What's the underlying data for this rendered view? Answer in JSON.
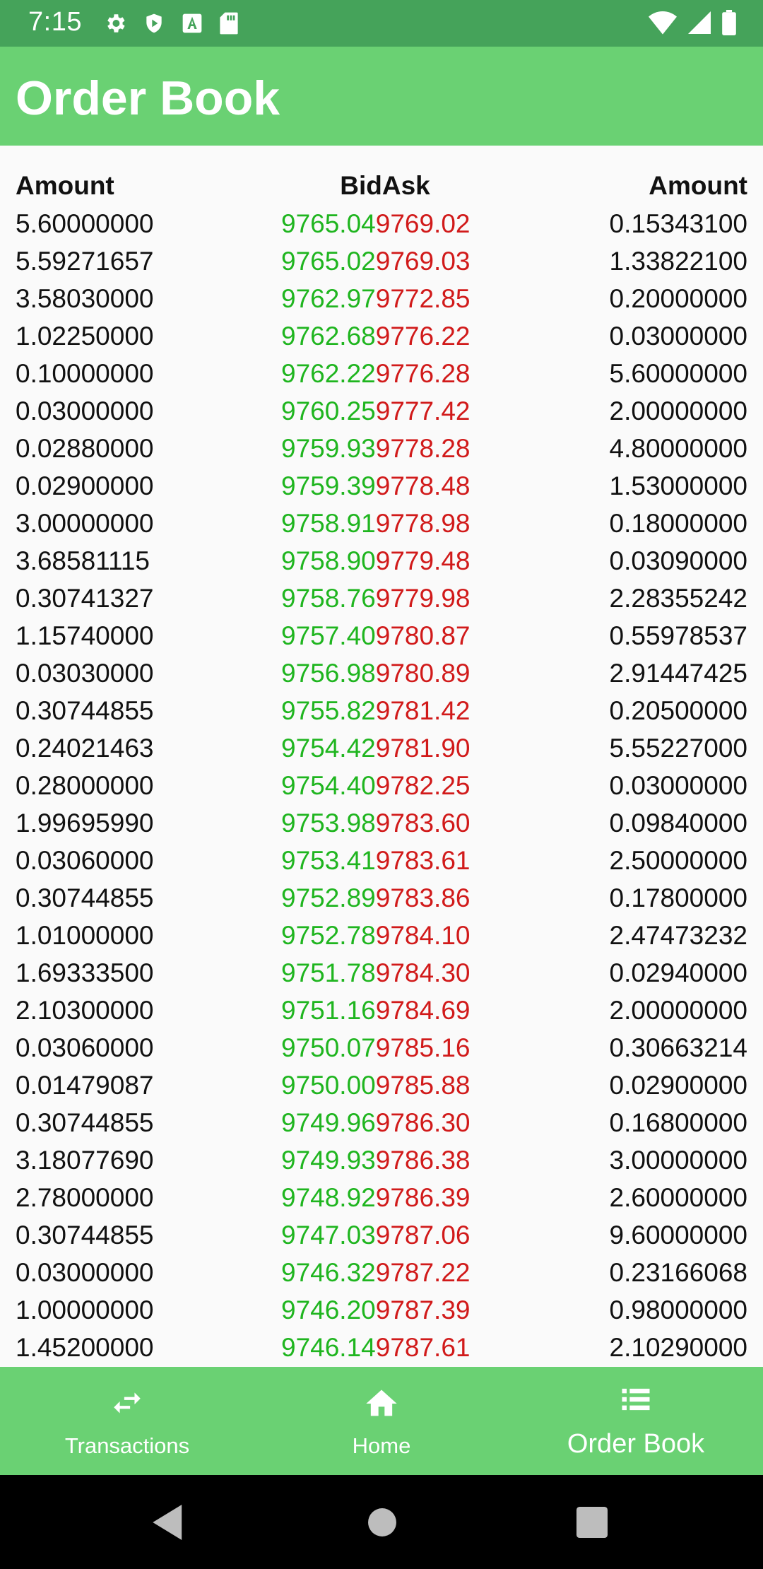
{
  "status": {
    "time": "7:15",
    "left_icons": [
      "gear-icon",
      "shield-icon",
      "font-a-icon",
      "sd-card-icon"
    ],
    "right_icons": [
      "wifi-icon",
      "signal-icon",
      "battery-icon"
    ]
  },
  "app_bar": {
    "title": "Order Book"
  },
  "table": {
    "headers": {
      "left": "Amount",
      "mid": "BidAsk",
      "right": "Amount"
    },
    "colors": {
      "bid": "#1fb51f",
      "ask": "#d11a1a"
    },
    "rows": [
      {
        "amount_bid": "5.60000000",
        "bid": "9765.04",
        "ask": "9769.02",
        "amount_ask": "0.15343100"
      },
      {
        "amount_bid": "5.59271657",
        "bid": "9765.02",
        "ask": "9769.03",
        "amount_ask": "1.33822100"
      },
      {
        "amount_bid": "3.58030000",
        "bid": "9762.97",
        "ask": "9772.85",
        "amount_ask": "0.20000000"
      },
      {
        "amount_bid": "1.02250000",
        "bid": "9762.68",
        "ask": "9776.22",
        "amount_ask": "0.03000000"
      },
      {
        "amount_bid": "0.10000000",
        "bid": "9762.22",
        "ask": "9776.28",
        "amount_ask": "5.60000000"
      },
      {
        "amount_bid": "0.03000000",
        "bid": "9760.25",
        "ask": "9777.42",
        "amount_ask": "2.00000000"
      },
      {
        "amount_bid": "0.02880000",
        "bid": "9759.93",
        "ask": "9778.28",
        "amount_ask": "4.80000000"
      },
      {
        "amount_bid": "0.02900000",
        "bid": "9759.39",
        "ask": "9778.48",
        "amount_ask": "1.53000000"
      },
      {
        "amount_bid": "3.00000000",
        "bid": "9758.91",
        "ask": "9778.98",
        "amount_ask": "0.18000000"
      },
      {
        "amount_bid": "3.68581115",
        "bid": "9758.90",
        "ask": "9779.48",
        "amount_ask": "0.03090000"
      },
      {
        "amount_bid": "0.30741327",
        "bid": "9758.76",
        "ask": "9779.98",
        "amount_ask": "2.28355242"
      },
      {
        "amount_bid": "1.15740000",
        "bid": "9757.40",
        "ask": "9780.87",
        "amount_ask": "0.55978537"
      },
      {
        "amount_bid": "0.03030000",
        "bid": "9756.98",
        "ask": "9780.89",
        "amount_ask": "2.91447425"
      },
      {
        "amount_bid": "0.30744855",
        "bid": "9755.82",
        "ask": "9781.42",
        "amount_ask": "0.20500000"
      },
      {
        "amount_bid": "0.24021463",
        "bid": "9754.42",
        "ask": "9781.90",
        "amount_ask": "5.55227000"
      },
      {
        "amount_bid": "0.28000000",
        "bid": "9754.40",
        "ask": "9782.25",
        "amount_ask": "0.03000000"
      },
      {
        "amount_bid": "1.99695990",
        "bid": "9753.98",
        "ask": "9783.60",
        "amount_ask": "0.09840000"
      },
      {
        "amount_bid": "0.03060000",
        "bid": "9753.41",
        "ask": "9783.61",
        "amount_ask": "2.50000000"
      },
      {
        "amount_bid": "0.30744855",
        "bid": "9752.89",
        "ask": "9783.86",
        "amount_ask": "0.17800000"
      },
      {
        "amount_bid": "1.01000000",
        "bid": "9752.78",
        "ask": "9784.10",
        "amount_ask": "2.47473232"
      },
      {
        "amount_bid": "1.69333500",
        "bid": "9751.78",
        "ask": "9784.30",
        "amount_ask": "0.02940000"
      },
      {
        "amount_bid": "2.10300000",
        "bid": "9751.16",
        "ask": "9784.69",
        "amount_ask": "2.00000000"
      },
      {
        "amount_bid": "0.03060000",
        "bid": "9750.07",
        "ask": "9785.16",
        "amount_ask": "0.30663214"
      },
      {
        "amount_bid": "0.01479087",
        "bid": "9750.00",
        "ask": "9785.88",
        "amount_ask": "0.02900000"
      },
      {
        "amount_bid": "0.30744855",
        "bid": "9749.96",
        "ask": "9786.30",
        "amount_ask": "0.16800000"
      },
      {
        "amount_bid": "3.18077690",
        "bid": "9749.93",
        "ask": "9786.38",
        "amount_ask": "3.00000000"
      },
      {
        "amount_bid": "2.78000000",
        "bid": "9748.92",
        "ask": "9786.39",
        "amount_ask": "2.60000000"
      },
      {
        "amount_bid": "0.30744855",
        "bid": "9747.03",
        "ask": "9787.06",
        "amount_ask": "9.60000000"
      },
      {
        "amount_bid": "0.03000000",
        "bid": "9746.32",
        "ask": "9787.22",
        "amount_ask": "0.23166068"
      },
      {
        "amount_bid": "1.00000000",
        "bid": "9746.20",
        "ask": "9787.39",
        "amount_ask": "0.98000000"
      },
      {
        "amount_bid": "1.45200000",
        "bid": "9746.14",
        "ask": "9787.61",
        "amount_ask": "2.10290000"
      }
    ]
  },
  "bottom_nav": {
    "items": [
      {
        "label": "Transactions",
        "icon": "swap-arrows-icon",
        "active": false
      },
      {
        "label": "Home",
        "icon": "home-icon",
        "active": false
      },
      {
        "label": "Order Book",
        "icon": "list-icon",
        "active": true
      }
    ]
  },
  "system_nav": {
    "buttons": [
      "back-icon",
      "home-circle-icon",
      "recents-square-icon"
    ]
  }
}
